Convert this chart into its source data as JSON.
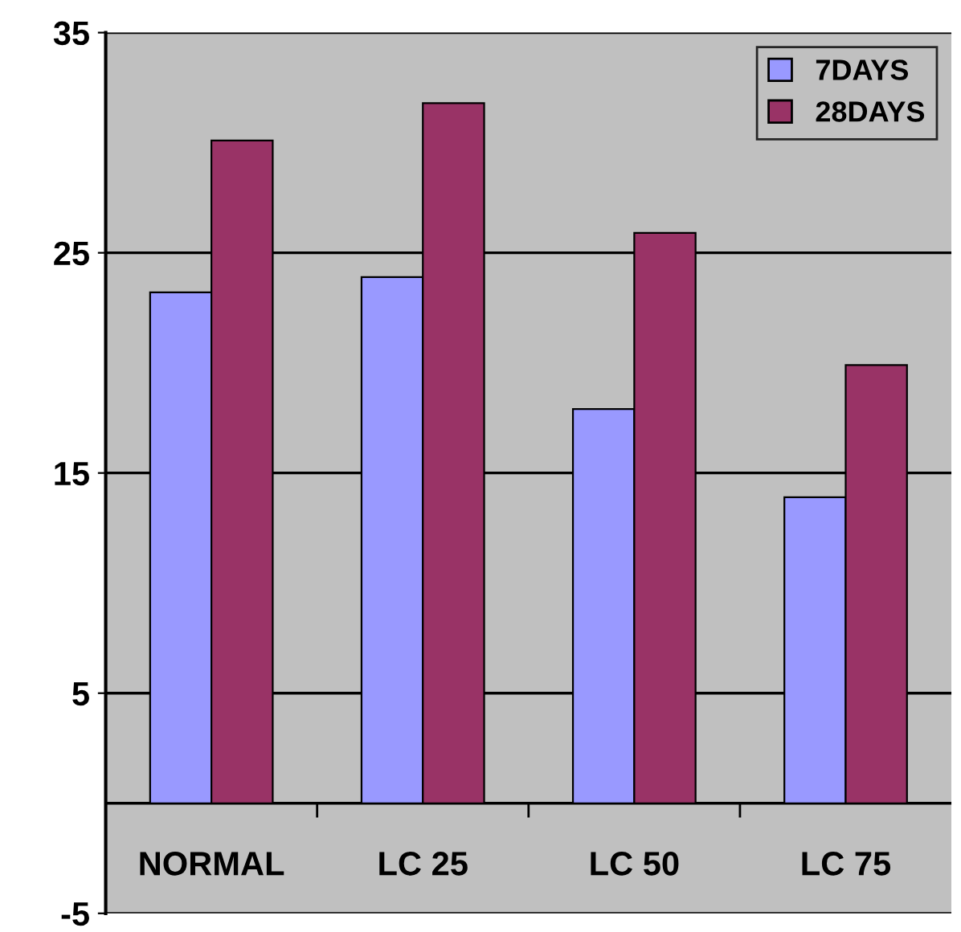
{
  "chart_data": {
    "type": "bar",
    "categories": [
      "NORMAL",
      "LC 25",
      "LC 50",
      "LC 75"
    ],
    "series": [
      {
        "name": "7DAYS",
        "color": "#9999ff",
        "values": [
          23.2,
          23.9,
          17.9,
          13.9
        ]
      },
      {
        "name": "28DAYS",
        "color": "#993366",
        "values": [
          30.1,
          31.8,
          25.9,
          19.9
        ]
      }
    ],
    "ylim": [
      -5,
      35
    ],
    "yticks": [
      -5,
      5,
      15,
      25,
      35
    ],
    "grid": "y",
    "legend": "top right"
  }
}
